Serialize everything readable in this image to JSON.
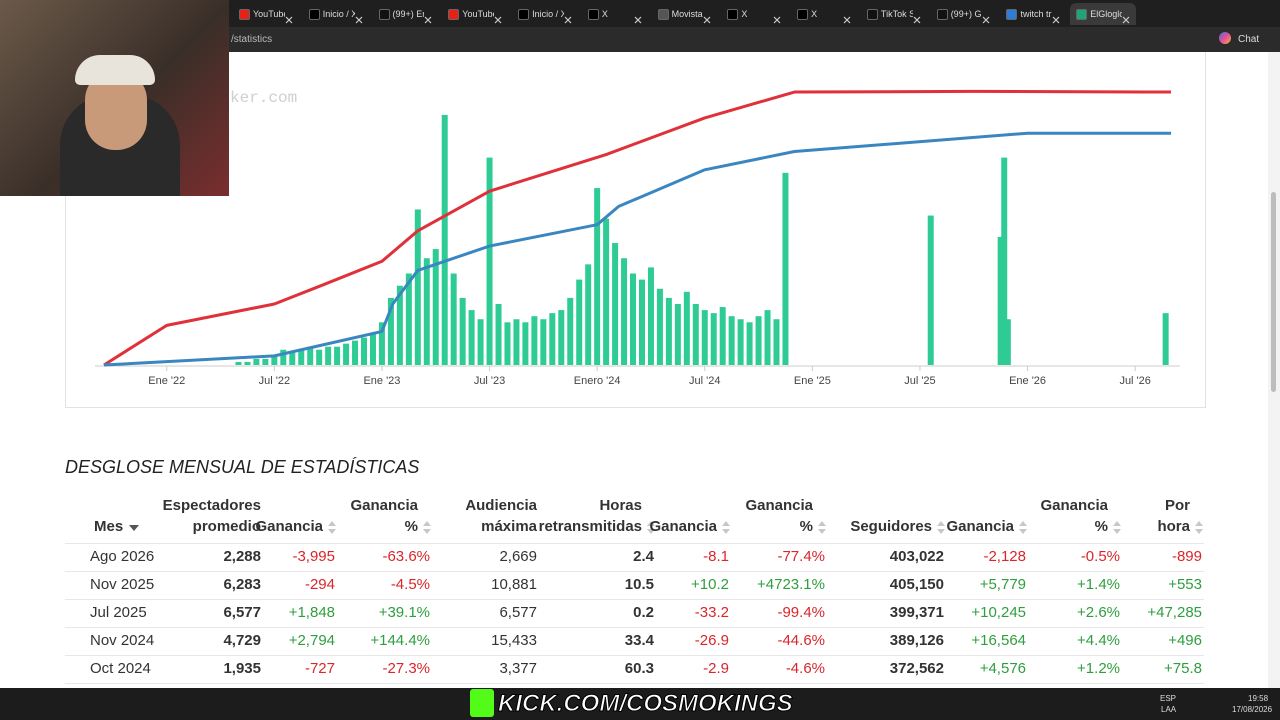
{
  "browser": {
    "tabs": [
      "YouTube",
      "Inicio / X",
      "(99+) En",
      "YouTube",
      "Inicio / X",
      "X",
      "Movistar",
      "X",
      "X",
      "TikTok S",
      "(99+) Glo",
      "twitch tr",
      "ElGloglo"
    ],
    "address": "/statistics",
    "chat": "Chat"
  },
  "chart_data": {
    "type": "line",
    "watermark": "ker.com",
    "xlim": [
      -4,
      56.5
    ],
    "ylim": [
      0,
      100
    ],
    "xticks": [
      {
        "value": 0,
        "label": "Ene '22"
      },
      {
        "value": 6,
        "label": "Jul '22"
      },
      {
        "value": 12,
        "label": "Ene '23"
      },
      {
        "value": 18,
        "label": "Jul '23"
      },
      {
        "value": 24,
        "label": "Enero '24"
      },
      {
        "value": 30,
        "label": "Jul '24"
      },
      {
        "value": 36,
        "label": "Ene '25"
      },
      {
        "value": 42,
        "label": "Jul '25"
      },
      {
        "value": 48,
        "label": "Ene '26"
      },
      {
        "value": 54,
        "label": "Jul '26"
      }
    ],
    "series": [
      {
        "type": "bar",
        "color": "#2ecc94",
        "x": [
          4,
          4.5,
          5,
          5.5,
          6,
          6.5,
          7,
          7.5,
          8,
          8.5,
          9,
          9.5,
          10,
          10.5,
          11,
          11.5,
          12,
          12.5,
          13,
          13.5,
          14,
          14.5,
          15,
          15.5,
          16,
          16.5,
          17,
          17.5,
          18,
          18.5,
          19,
          19.5,
          20,
          20.5,
          21,
          21.5,
          22,
          22.5,
          23,
          23.5,
          24,
          24.5,
          25,
          25.5,
          26,
          26.5,
          27,
          27.5,
          28,
          28.5,
          29,
          29.5,
          30,
          30.5,
          31,
          31.5,
          32,
          32.5,
          33,
          33.5,
          34,
          34.5,
          42.6,
          46.5,
          46.7,
          46.9,
          55.7
        ],
        "values": [
          1,
          1,
          2,
          2,
          3,
          5,
          4,
          5,
          6,
          5,
          6,
          6,
          7,
          8,
          9,
          10,
          14,
          22,
          26,
          30,
          51,
          35,
          38,
          82,
          30,
          22,
          18,
          15,
          68,
          20,
          14,
          15,
          14,
          16,
          15,
          17,
          18,
          22,
          28,
          33,
          58,
          48,
          40,
          35,
          30,
          28,
          32,
          25,
          22,
          20,
          24,
          20,
          18,
          17,
          19,
          16,
          15,
          14,
          16,
          18,
          15,
          63,
          49,
          42,
          68,
          15,
          17
        ]
      },
      {
        "type": "line",
        "color": "#e0303a",
        "x": [
          -3.5,
          0,
          6,
          8.6,
          12,
          14,
          18,
          24.5,
          30,
          35,
          45,
          56
        ],
        "values": [
          0,
          13,
          20,
          26,
          34,
          44,
          57,
          69,
          81,
          89.5,
          89.7,
          89.5
        ]
      },
      {
        "type": "line",
        "color": "#3a86c0",
        "x": [
          -3.5,
          6,
          12,
          12.6,
          14,
          18,
          24,
          25.2,
          30,
          35,
          48,
          56
        ],
        "values": [
          0,
          3,
          11,
          20,
          31,
          39,
          46,
          52,
          64,
          70,
          76,
          76
        ]
      }
    ]
  },
  "section_title": "DESGLOSE MENSUAL DE ESTADÍSTICAS",
  "table": {
    "headers": [
      [
        "Mes"
      ],
      [
        "Espectadores",
        "promedio"
      ],
      [
        "Ganancia"
      ],
      [
        "Ganancia",
        "%"
      ],
      [
        "Audiencia",
        "máxima"
      ],
      [
        "Horas",
        "retransmitidas"
      ],
      [
        "Ganancia"
      ],
      [
        "Ganancia",
        "%"
      ],
      [
        "Seguidores"
      ],
      [
        "Ganancia"
      ],
      [
        "Ganancia",
        "%"
      ],
      [
        "Por",
        "hora"
      ]
    ],
    "rows": [
      [
        "Ago 2026",
        "2,288",
        "-3,995",
        "-63.6%",
        "2,669",
        "2.4",
        "-8.1",
        "-77.4%",
        "403,022",
        "-2,128",
        "-0.5%",
        "-899"
      ],
      [
        "Nov 2025",
        "6,283",
        "-294",
        "-4.5%",
        "10,881",
        "10.5",
        "+10.2",
        "+4723.1%",
        "405,150",
        "+5,779",
        "+1.4%",
        "+553"
      ],
      [
        "Jul 2025",
        "6,577",
        "+1,848",
        "+39.1%",
        "6,577",
        "0.2",
        "-33.2",
        "-99.4%",
        "399,371",
        "+10,245",
        "+2.6%",
        "+47,285"
      ],
      [
        "Nov 2024",
        "4,729",
        "+2,794",
        "+144.4%",
        "15,433",
        "33.4",
        "-26.9",
        "-44.6%",
        "389,126",
        "+16,564",
        "+4.4%",
        "+496"
      ],
      [
        "Oct 2024",
        "1,935",
        "-727",
        "-27.3%",
        "3,377",
        "60.3",
        "-2.9",
        "-4.6%",
        "372,562",
        "+4,576",
        "+1.2%",
        "+75.8"
      ]
    ]
  },
  "taskbar": {
    "banner": "KICK.COM/COSMOKINGS",
    "lang": "ESP",
    "layout": "LAA",
    "time": "19:58",
    "date": "17/08/2026"
  }
}
